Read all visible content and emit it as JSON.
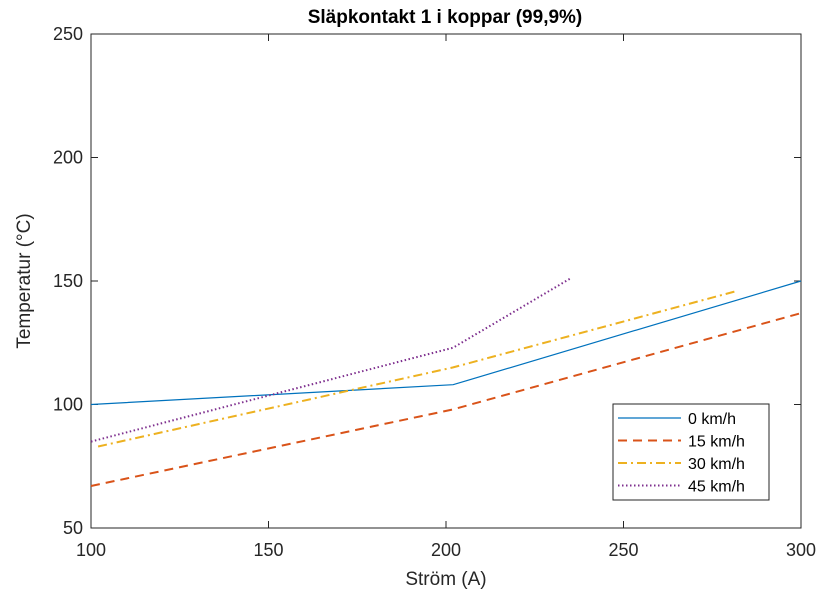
{
  "chart_data": {
    "type": "line",
    "title": "Släpkontakt 1 i koppar (99,9%)",
    "xlabel": "Ström (A)",
    "ylabel": "Temperatur (°C)",
    "xlim": [
      100,
      300
    ],
    "ylim": [
      50,
      250
    ],
    "xticks": [
      100,
      150,
      200,
      250,
      300
    ],
    "yticks": [
      50,
      100,
      150,
      200,
      250
    ],
    "grid": false,
    "legend_position": "bottom-right",
    "series": [
      {
        "name": "0 km/h",
        "color": "#0072BD",
        "style": "solid",
        "x": [
          100,
          202,
          300
        ],
        "y": [
          100,
          108,
          150
        ]
      },
      {
        "name": "15 km/h",
        "color": "#D95319",
        "style": "dashed",
        "x": [
          100,
          202,
          300
        ],
        "y": [
          67,
          98,
          137
        ]
      },
      {
        "name": "30 km/h",
        "color": "#EDB120",
        "style": "dashdot",
        "x": [
          102,
          202,
          282
        ],
        "y": [
          83,
          115,
          146
        ]
      },
      {
        "name": "45 km/h",
        "color": "#7E2F8E",
        "style": "dotted",
        "x": [
          100,
          202,
          235
        ],
        "y": [
          85,
          123,
          151
        ]
      }
    ]
  }
}
